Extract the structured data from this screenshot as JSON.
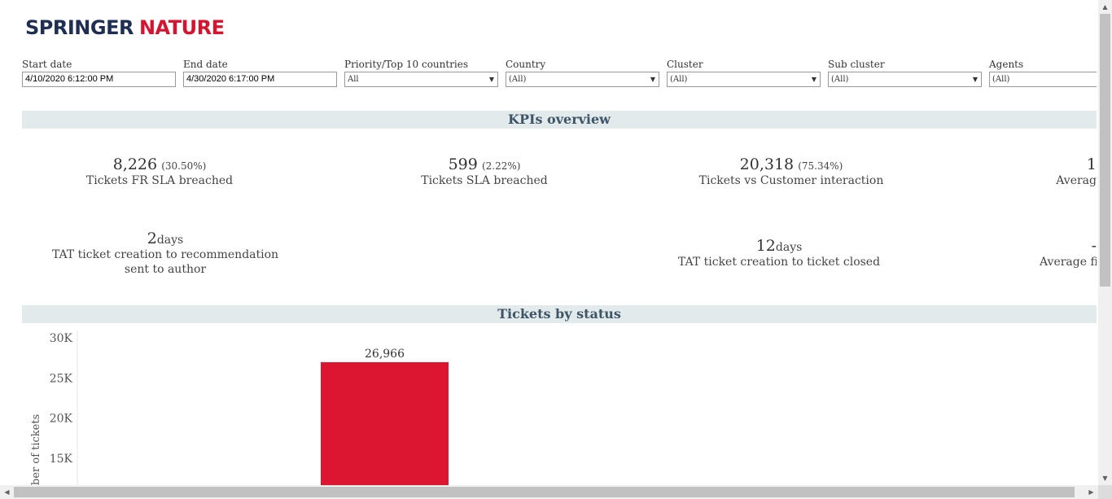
{
  "brand": {
    "word1": "SPRINGER",
    "word2": "NATURE",
    "color1": "#1f2f54",
    "color2": "#d5152f"
  },
  "filters": [
    {
      "label": "Start date",
      "value": "4/10/2020 6:12:00 PM",
      "type": "text"
    },
    {
      "label": "End date",
      "value": "4/30/2020 6:17:00 PM",
      "type": "text"
    },
    {
      "label": "Priority/Top 10 countries",
      "value": "All",
      "type": "dropdown"
    },
    {
      "label": "Country",
      "value": "(All)",
      "type": "dropdown"
    },
    {
      "label": "Cluster",
      "value": "(All)",
      "type": "dropdown"
    },
    {
      "label": "Sub cluster",
      "value": "(All)",
      "type": "dropdown"
    },
    {
      "label": "Agents",
      "value": "(All)",
      "type": "dropdown"
    }
  ],
  "kpis_title": "KPIs overview",
  "kpis": [
    {
      "value": "8,226",
      "pct": "(30.50%)",
      "label": "Tickets FR SLA breached"
    },
    {
      "value": "599",
      "pct": "(2.22%)",
      "label": "Tickets SLA breached"
    },
    {
      "value": "20,318",
      "pct": "(75.34%)",
      "label": "Tickets vs Customer interaction"
    },
    {
      "value": "1",
      "label": "Averag"
    },
    {
      "value": "2",
      "unit": "days",
      "label_line1": "TAT ticket creation to recommendation",
      "label_line2": "sent to author"
    },
    {
      "value": "12",
      "unit": "days",
      "label": "TAT ticket creation to ticket closed"
    },
    {
      "value": "-",
      "label": "Average fi"
    }
  ],
  "status_title": "Tickets by status",
  "chart_data": {
    "type": "bar",
    "categories": [
      ""
    ],
    "values": [
      26966
    ],
    "value_labels": [
      "26,966"
    ],
    "ylabel": "Number of tickets",
    "ylabel_visible": "ber of tickets",
    "y_ticks": [
      "30K",
      "25K",
      "20K",
      "15K"
    ],
    "ylim": [
      0,
      30000
    ],
    "bar_color": "#dc1530",
    "grid": false
  }
}
